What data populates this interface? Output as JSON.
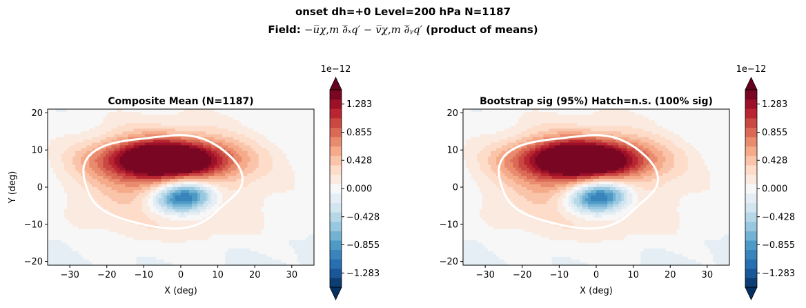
{
  "figure": {
    "title_line1": "onset  dh=+0   Level=200 hPa   N=1187",
    "title_line2_prefix": "Field: ",
    "title_line2_math": "−u̅χ,m ∂̅ₓq′ − v̅χ,m ∂̅ᵧq′",
    "title_line2_suffix": "  (product of means)"
  },
  "chart_data": [
    {
      "type": "heatmap",
      "title": "Composite Mean  (N=1187)",
      "xlabel": "X (deg)",
      "ylabel": "Y (deg)",
      "xlim": [
        -36,
        36
      ],
      "ylim": [
        -21,
        21
      ],
      "xticks": [
        -30,
        -20,
        -10,
        0,
        10,
        20,
        30
      ],
      "yticks": [
        -20,
        -10,
        0,
        10,
        20
      ],
      "colormap": "RdBu_r",
      "colorbar": {
        "offset_label": "1e−12",
        "ticks": [
          1.283,
          0.855,
          0.428,
          0.0,
          -0.428,
          -0.855,
          -1.283
        ],
        "tick_labels": [
          "1.283",
          "0.855",
          "0.428",
          "0.000",
          "−0.428",
          "−0.855",
          "−1.283"
        ],
        "range": [
          -1.5,
          1.5
        ],
        "extend": "both"
      },
      "features": {
        "positive_lobe": {
          "center": [
            -5,
            7
          ],
          "peak": 1.5,
          "desc": "strong positive band north of center"
        },
        "negative_lobe": {
          "center": [
            2,
            -2
          ],
          "peak": -1.3
        },
        "white_contour": "closed loop approx. x from -26 to 19, y from -12 to 14"
      }
    },
    {
      "type": "heatmap",
      "title": "Bootstrap sig (95%)  Hatch=n.s.  (100% sig)",
      "xlabel": "X (deg)",
      "ylabel": "",
      "xlim": [
        -36,
        36
      ],
      "ylim": [
        -21,
        21
      ],
      "xticks": [
        -30,
        -20,
        -10,
        0,
        10,
        20,
        30
      ],
      "yticks": [
        -20,
        -10,
        0,
        10,
        20
      ],
      "colormap": "RdBu_r",
      "colorbar": {
        "offset_label": "1e−12",
        "ticks": [
          1.283,
          0.855,
          0.428,
          0.0,
          -0.428,
          -0.855,
          -1.283
        ],
        "tick_labels": [
          "1.283",
          "0.855",
          "0.428",
          "0.000",
          "−0.428",
          "−0.855",
          "−1.283"
        ],
        "range": [
          -1.5,
          1.5
        ],
        "extend": "both"
      }
    }
  ],
  "colors": {
    "dark_red": "#67001f",
    "mid_red": "#d6604d",
    "light_red": "#fddbc7",
    "neutral": "#f7f7f7",
    "light_blue": "#d1e5f0",
    "mid_blue": "#4393c3",
    "dark_blue": "#053061",
    "contour": "#ffffff"
  }
}
